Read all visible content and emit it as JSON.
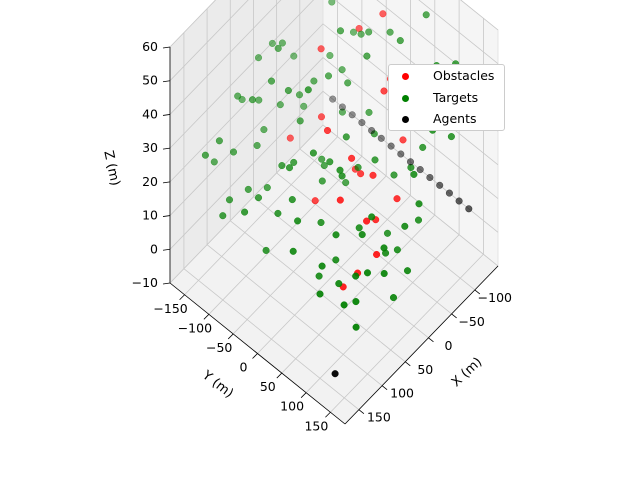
{
  "chart_data": {
    "type": "scatter",
    "projection": "3d",
    "xlabel": "X (m)",
    "ylabel": "Y (m)",
    "zlabel": "Z (m)",
    "x_ticks": [
      "−100",
      "−50",
      "0",
      "50",
      "100",
      "150"
    ],
    "y_ticks": [
      "−150",
      "−100",
      "−50",
      "0",
      "50",
      "100",
      "150"
    ],
    "z_ticks": [
      "−10",
      "0",
      "10",
      "20",
      "30",
      "40",
      "50",
      "60"
    ],
    "xlim": [
      -150,
      180
    ],
    "ylim": [
      -180,
      180
    ],
    "zlim": [
      -10,
      60
    ],
    "grid": true,
    "legend_placement": "top-right",
    "series": [
      {
        "name": "Obstacles",
        "color": "#ff0000",
        "points": [
          [
            -70,
            35,
            40
          ],
          [
            -50,
            80,
            30
          ],
          [
            -30,
            60,
            45
          ],
          [
            -10,
            20,
            20
          ],
          [
            10,
            50,
            25
          ],
          [
            20,
            85,
            30
          ],
          [
            30,
            100,
            20
          ],
          [
            40,
            60,
            35
          ],
          [
            50,
            20,
            40
          ],
          [
            60,
            110,
            25
          ],
          [
            70,
            140,
            20
          ],
          [
            80,
            75,
            30
          ],
          [
            90,
            120,
            15
          ],
          [
            -60,
            -20,
            50
          ],
          [
            -20,
            -60,
            45
          ],
          [
            0,
            -40,
            30
          ],
          [
            15,
            -90,
            20
          ],
          [
            100,
            100,
            10
          ],
          [
            5,
            120,
            25
          ],
          [
            -80,
            10,
            55
          ],
          [
            45,
            -10,
            15
          ]
        ]
      },
      {
        "name": "Targets",
        "color": "#008000",
        "points": [
          [
            -90,
            -60,
            40
          ],
          [
            -85,
            20,
            50
          ],
          [
            -75,
            -30,
            45
          ],
          [
            -65,
            60,
            55
          ],
          [
            -60,
            -80,
            35
          ],
          [
            -55,
            100,
            40
          ],
          [
            -50,
            10,
            30
          ],
          [
            -45,
            -40,
            25
          ],
          [
            -40,
            130,
            35
          ],
          [
            -35,
            -110,
            20
          ],
          [
            -30,
            40,
            30
          ],
          [
            -25,
            -10,
            40
          ],
          [
            -20,
            90,
            25
          ],
          [
            -15,
            -70,
            35
          ],
          [
            -10,
            150,
            20
          ],
          [
            -5,
            5,
            15
          ],
          [
            0,
            70,
            30
          ],
          [
            5,
            -120,
            25
          ],
          [
            10,
            -30,
            20
          ],
          [
            15,
            110,
            15
          ],
          [
            20,
            30,
            35
          ],
          [
            25,
            -60,
            30
          ],
          [
            30,
            160,
            25
          ],
          [
            35,
            -5,
            20
          ],
          [
            40,
            130,
            15
          ],
          [
            45,
            -100,
            40
          ],
          [
            50,
            50,
            30
          ],
          [
            55,
            90,
            20
          ],
          [
            60,
            -40,
            25
          ],
          [
            65,
            170,
            10
          ],
          [
            70,
            10,
            35
          ],
          [
            75,
            -80,
            15
          ],
          [
            80,
            120,
            25
          ],
          [
            85,
            40,
            20
          ],
          [
            90,
            -20,
            30
          ],
          [
            95,
            80,
            15
          ],
          [
            100,
            150,
            20
          ],
          [
            105,
            0,
            25
          ],
          [
            110,
            60,
            10
          ],
          [
            115,
            -60,
            20
          ],
          [
            120,
            110,
            15
          ],
          [
            125,
            30,
            25
          ],
          [
            130,
            -30,
            10
          ],
          [
            135,
            90,
            20
          ],
          [
            140,
            140,
            15
          ],
          [
            -95,
            -120,
            50
          ],
          [
            -80,
            -150,
            45
          ],
          [
            -70,
            130,
            55
          ],
          [
            -60,
            170,
            40
          ],
          [
            -45,
            -140,
            30
          ],
          [
            -30,
            160,
            45
          ],
          [
            -20,
            -160,
            35
          ],
          [
            -10,
            -130,
            40
          ],
          [
            0,
            150,
            35
          ],
          [
            10,
            170,
            30
          ],
          [
            20,
            -150,
            25
          ],
          [
            30,
            -130,
            20
          ],
          [
            40,
            175,
            15
          ],
          [
            55,
            -160,
            30
          ],
          [
            65,
            -120,
            35
          ],
          [
            75,
            160,
            25
          ],
          [
            85,
            -140,
            20
          ],
          [
            95,
            -100,
            15
          ],
          [
            105,
            -150,
            25
          ],
          [
            115,
            140,
            20
          ],
          [
            125,
            -110,
            15
          ],
          [
            135,
            160,
            10
          ],
          [
            145,
            -60,
            20
          ],
          [
            150,
            100,
            15
          ],
          [
            -100,
            80,
            60
          ],
          [
            -90,
            150,
            55
          ],
          [
            -85,
            -100,
            45
          ],
          [
            -75,
            -170,
            40
          ],
          [
            -65,
            -5,
            50
          ],
          [
            -55,
            -50,
            35
          ],
          [
            -40,
            70,
            45
          ],
          [
            -25,
            120,
            30
          ],
          [
            -15,
            -40,
            40
          ],
          [
            5,
            40,
            25
          ],
          [
            15,
            -20,
            20
          ],
          [
            25,
            140,
            15
          ],
          [
            35,
            -170,
            25
          ],
          [
            45,
            20,
            30
          ],
          [
            55,
            -120,
            20
          ],
          [
            65,
            60,
            35
          ],
          [
            75,
            -50,
            25
          ],
          [
            85,
            170,
            20
          ],
          [
            95,
            -170,
            15
          ],
          [
            105,
            90,
            25
          ],
          [
            115,
            -20,
            20
          ],
          [
            125,
            150,
            15
          ],
          [
            135,
            -150,
            25
          ],
          [
            145,
            40,
            20
          ],
          [
            150,
            -100,
            15
          ],
          [
            -5,
            -90,
            30
          ],
          [
            -35,
            20,
            50
          ],
          [
            -50,
            -120,
            55
          ],
          [
            10,
            -160,
            35
          ],
          [
            70,
            130,
            30
          ],
          [
            40,
            -70,
            40
          ],
          [
            20,
            -110,
            45
          ],
          [
            -70,
            -90,
            60
          ],
          [
            -20,
            -20,
            55
          ],
          [
            60,
            -10,
            50
          ]
        ]
      },
      {
        "name": "Agents",
        "color": "#000000",
        "points": [
          [
            -150,
            -160,
            0
          ],
          [
            -150,
            -140,
            0
          ],
          [
            -150,
            -120,
            0
          ],
          [
            -150,
            -100,
            0
          ],
          [
            -150,
            -80,
            0
          ],
          [
            -150,
            -60,
            0
          ],
          [
            -150,
            -40,
            0
          ],
          [
            -150,
            -20,
            0
          ],
          [
            -150,
            0,
            0
          ],
          [
            -150,
            20,
            0
          ],
          [
            -150,
            40,
            0
          ],
          [
            -150,
            60,
            0
          ],
          [
            -150,
            80,
            0
          ],
          [
            -150,
            100,
            0
          ],
          [
            -150,
            120,
            0
          ],
          [
            170,
            150,
            0
          ]
        ]
      }
    ]
  }
}
